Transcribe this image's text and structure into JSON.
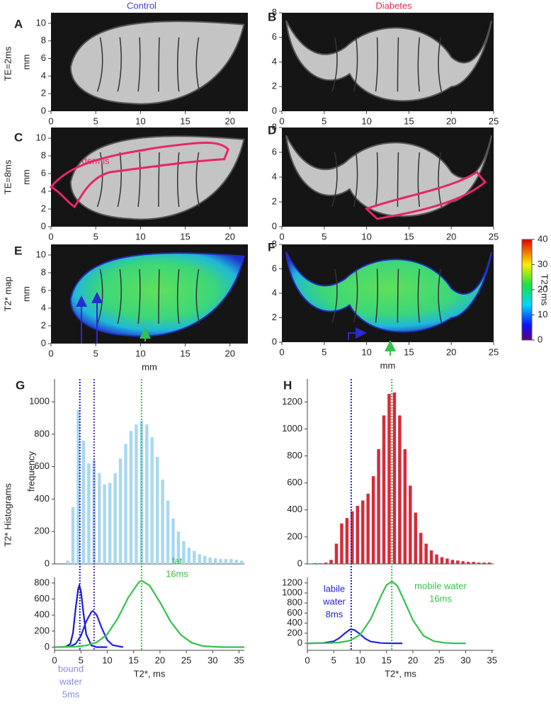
{
  "column_titles": [
    "Control",
    "Diabetes"
  ],
  "row_labels": [
    "TE=2ms",
    "TE=8ms",
    "T2* map",
    "T2* Histograms"
  ],
  "chart_data": [
    {
      "type": "image",
      "label": "A",
      "ylabel": "mm",
      "xlim": [
        0,
        22
      ],
      "xticks": [
        0,
        5,
        10,
        15,
        20
      ],
      "ylim": [
        0,
        11.2
      ],
      "yticks": [
        0,
        2,
        4,
        6,
        8,
        10
      ]
    },
    {
      "type": "image",
      "label": "B",
      "xlim": [
        0,
        25
      ],
      "xticks": [
        0,
        5,
        10,
        15,
        20,
        25
      ],
      "ylim": [
        0,
        8
      ],
      "yticks": [
        0,
        2,
        4,
        6,
        8
      ]
    },
    {
      "type": "image",
      "label": "C",
      "ylabel": "mm",
      "xlim": [
        0,
        22
      ],
      "xticks": [
        0,
        5,
        10,
        15,
        20
      ],
      "ylim": [
        0,
        11.2
      ],
      "yticks": [
        0,
        2,
        4,
        6,
        8,
        10
      ],
      "annotations": [
        {
          "lines": [
            "dermis"
          ],
          "color": "#e8256a"
        }
      ]
    },
    {
      "type": "image",
      "label": "D",
      "xlim": [
        0,
        25
      ],
      "xticks": [
        0,
        5,
        10,
        15,
        20,
        25
      ],
      "ylim": [
        0,
        8
      ],
      "yticks": [
        0,
        2,
        4,
        6,
        8
      ]
    },
    {
      "type": "map",
      "label": "E",
      "ylabel": "mm",
      "xlabel": "mm",
      "xlim": [
        0,
        22
      ],
      "xticks": [
        0,
        5,
        10,
        15,
        20
      ],
      "ylim": [
        0,
        11.2
      ],
      "yticks": [
        0,
        2,
        4,
        6,
        8,
        10
      ]
    },
    {
      "type": "map",
      "label": "F",
      "xlabel": "mm",
      "xlim": [
        0,
        25
      ],
      "xticks": [
        0,
        5,
        10,
        15,
        20,
        25
      ],
      "ylim": [
        0,
        8
      ],
      "yticks": [
        0,
        2,
        4,
        6,
        8
      ]
    },
    {
      "type": "colorbar",
      "ylabel": "T2*, ms",
      "ylim": [
        0,
        40
      ],
      "yticks": [
        0,
        10,
        20,
        30,
        40
      ]
    },
    {
      "type": "histogram",
      "label": "G",
      "ylabel": "frequency",
      "color": "#a8d8f0",
      "bins": [
        2,
        3,
        4,
        5,
        6,
        7,
        8,
        9,
        10,
        11,
        12,
        13,
        14,
        15,
        16,
        17,
        18,
        19,
        20,
        21,
        22,
        23,
        24,
        25,
        26,
        27,
        28,
        29,
        30,
        31,
        32,
        33,
        34,
        35,
        36
      ],
      "values": [
        20,
        350,
        950,
        760,
        620,
        640,
        560,
        490,
        500,
        560,
        650,
        740,
        820,
        860,
        880,
        860,
        780,
        660,
        520,
        390,
        280,
        200,
        140,
        100,
        80,
        60,
        50,
        40,
        35,
        30,
        30,
        30,
        25,
        20
      ],
      "xlim": [
        0,
        36
      ],
      "ylim": [
        0,
        1140
      ],
      "yticks": [
        0,
        200,
        400,
        600,
        800,
        1000
      ],
      "vlines": [
        {
          "x": 4.8,
          "color": "#1a1acc"
        },
        {
          "x": 7.5,
          "color": "#5a2ab0"
        },
        {
          "x": 16.5,
          "color": "#33c24a"
        }
      ]
    },
    {
      "type": "line",
      "xlabel": "T2*, ms",
      "xlim": [
        0,
        36
      ],
      "xticks": [
        0,
        5,
        10,
        15,
        20,
        25,
        30,
        35
      ],
      "ylim": [
        -40,
        870
      ],
      "yticks": [
        0,
        200,
        400,
        600,
        800
      ],
      "series": [
        {
          "color": "#1a1acc",
          "x": [
            2,
            3,
            3.5,
            4,
            4.5,
            4.7,
            5,
            5.5,
            6,
            7,
            8,
            10
          ],
          "values": [
            0,
            40,
            180,
            480,
            730,
            770,
            700,
            420,
            160,
            20,
            0,
            0
          ]
        },
        {
          "color": "#2222dd",
          "x": [
            1,
            3,
            4,
            5,
            6,
            7,
            7.3,
            8,
            9,
            10,
            11,
            13
          ],
          "values": [
            0,
            10,
            40,
            140,
            320,
            440,
            450,
            400,
            230,
            90,
            25,
            0
          ]
        },
        {
          "color": "#33c24a",
          "x": [
            0,
            4,
            6,
            8,
            10,
            12,
            14,
            16,
            16.5,
            18,
            20,
            22,
            24,
            26,
            28,
            30,
            32,
            34,
            36
          ],
          "values": [
            0,
            5,
            20,
            60,
            160,
            360,
            620,
            810,
            830,
            770,
            560,
            320,
            150,
            55,
            15,
            5,
            0,
            0,
            0
          ]
        }
      ],
      "annotations": [
        {
          "lines": [
            "fat",
            "16ms"
          ],
          "color": "#33c24a"
        },
        {
          "lines": [
            "bound",
            "water",
            "5ms"
          ],
          "color": "#8a8ae0"
        }
      ]
    },
    {
      "type": "histogram",
      "label": "H",
      "color": "#d62b3a",
      "bins": [
        1,
        2,
        3,
        4,
        5,
        6,
        7,
        8,
        9,
        10,
        11,
        12,
        13,
        14,
        15,
        16,
        17,
        18,
        19,
        20,
        21,
        22,
        23,
        24,
        25,
        26,
        27,
        28,
        29,
        30,
        31,
        32,
        33,
        34,
        35
      ],
      "values": [
        5,
        5,
        10,
        30,
        150,
        300,
        340,
        390,
        430,
        470,
        520,
        650,
        850,
        1100,
        1260,
        1270,
        1100,
        850,
        580,
        380,
        230,
        150,
        100,
        70,
        50,
        40,
        30,
        25,
        20,
        15,
        15,
        10,
        10,
        10
      ],
      "xlim": [
        0,
        35.3
      ],
      "ylim": [
        0,
        1370
      ],
      "yticks": [
        0,
        200,
        400,
        600,
        800,
        1000,
        1200
      ],
      "vlines": [
        {
          "x": 8.3,
          "color": "#1a1acc"
        },
        {
          "x": 16,
          "color": "#33c24a"
        }
      ]
    },
    {
      "type": "line",
      "xlabel": "T2*, ms",
      "xlim": [
        0,
        35.3
      ],
      "xticks": [
        0,
        5,
        10,
        15,
        20,
        25,
        30,
        35
      ],
      "ylim": [
        -140,
        1310
      ],
      "yticks": [
        0,
        200,
        400,
        600,
        800,
        1000,
        1200
      ],
      "series": [
        {
          "color": "#2222dd",
          "x": [
            0,
            3,
            5,
            6,
            7,
            8,
            8.3,
            9,
            10,
            11,
            12,
            14,
            16,
            18
          ],
          "values": [
            0,
            5,
            40,
            100,
            190,
            270,
            280,
            260,
            180,
            90,
            35,
            5,
            0,
            0
          ]
        },
        {
          "color": "#33c24a",
          "x": [
            0,
            4,
            6,
            8,
            10,
            12,
            14,
            15,
            16,
            17,
            18,
            20,
            22,
            24,
            26,
            28,
            30
          ],
          "values": [
            0,
            5,
            15,
            50,
            170,
            480,
            950,
            1160,
            1230,
            1150,
            930,
            460,
            150,
            40,
            10,
            0,
            0
          ]
        }
      ],
      "annotations": [
        {
          "lines": [
            "labile",
            "water",
            "8ms"
          ],
          "color": "#2222cc"
        },
        {
          "lines": [
            "mobile water",
            "16ms"
          ],
          "color": "#33c24a"
        }
      ]
    }
  ]
}
